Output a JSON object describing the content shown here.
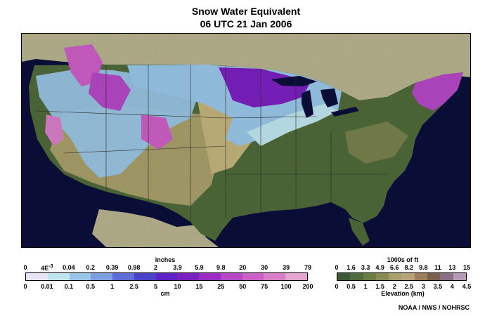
{
  "header": {
    "title": "Snow Water Equivalent",
    "subtitle": "06 UTC 21 Jan 2006"
  },
  "swe_legend": {
    "unit_top": "inches",
    "unit_bottom": "cm",
    "top_labels": [
      "0",
      "4E",
      "0.04",
      "0.2",
      "0.39",
      "0.98",
      "2",
      "3.9",
      "5.9",
      "9.8",
      "20",
      "30",
      "39",
      "79"
    ],
    "top_label_exp": "-3",
    "bottom_labels": [
      "0",
      "0.01",
      "0.1",
      "0.5",
      "1",
      "2.5",
      "5",
      "10",
      "15",
      "25",
      "50",
      "75",
      "100",
      "200"
    ],
    "colors": [
      "#e9e4f5",
      "#bfe5ee",
      "#99c6e8",
      "#7d9fdf",
      "#5f6ed6",
      "#4a44c8",
      "#5b22c6",
      "#7b20c0",
      "#9b2cc2",
      "#b548c6",
      "#cc5fc6",
      "#d97fc8",
      "#e4a6cf"
    ]
  },
  "elev_legend": {
    "unit_top": "1000s of ft",
    "unit_bottom": "Elevation (km)",
    "top_labels": [
      "0",
      "1.6",
      "3.3",
      "4.9",
      "6.6",
      "8.2",
      "9.8",
      "11",
      "13",
      "15"
    ],
    "bottom_labels": [
      "0",
      "0.5",
      "1",
      "1.5",
      "2",
      "2.5",
      "3",
      "3.5",
      "4",
      "4.5"
    ],
    "colors": [
      "#3c5a33",
      "#4f6d3c",
      "#6a7d45",
      "#8a8a55",
      "#a89f6a",
      "#b8a27a",
      "#9c7e5c",
      "#7a5f4a",
      "#8d6f88",
      "#b79ab6"
    ]
  },
  "credit": "NOAA / NWS / NOHRSC"
}
